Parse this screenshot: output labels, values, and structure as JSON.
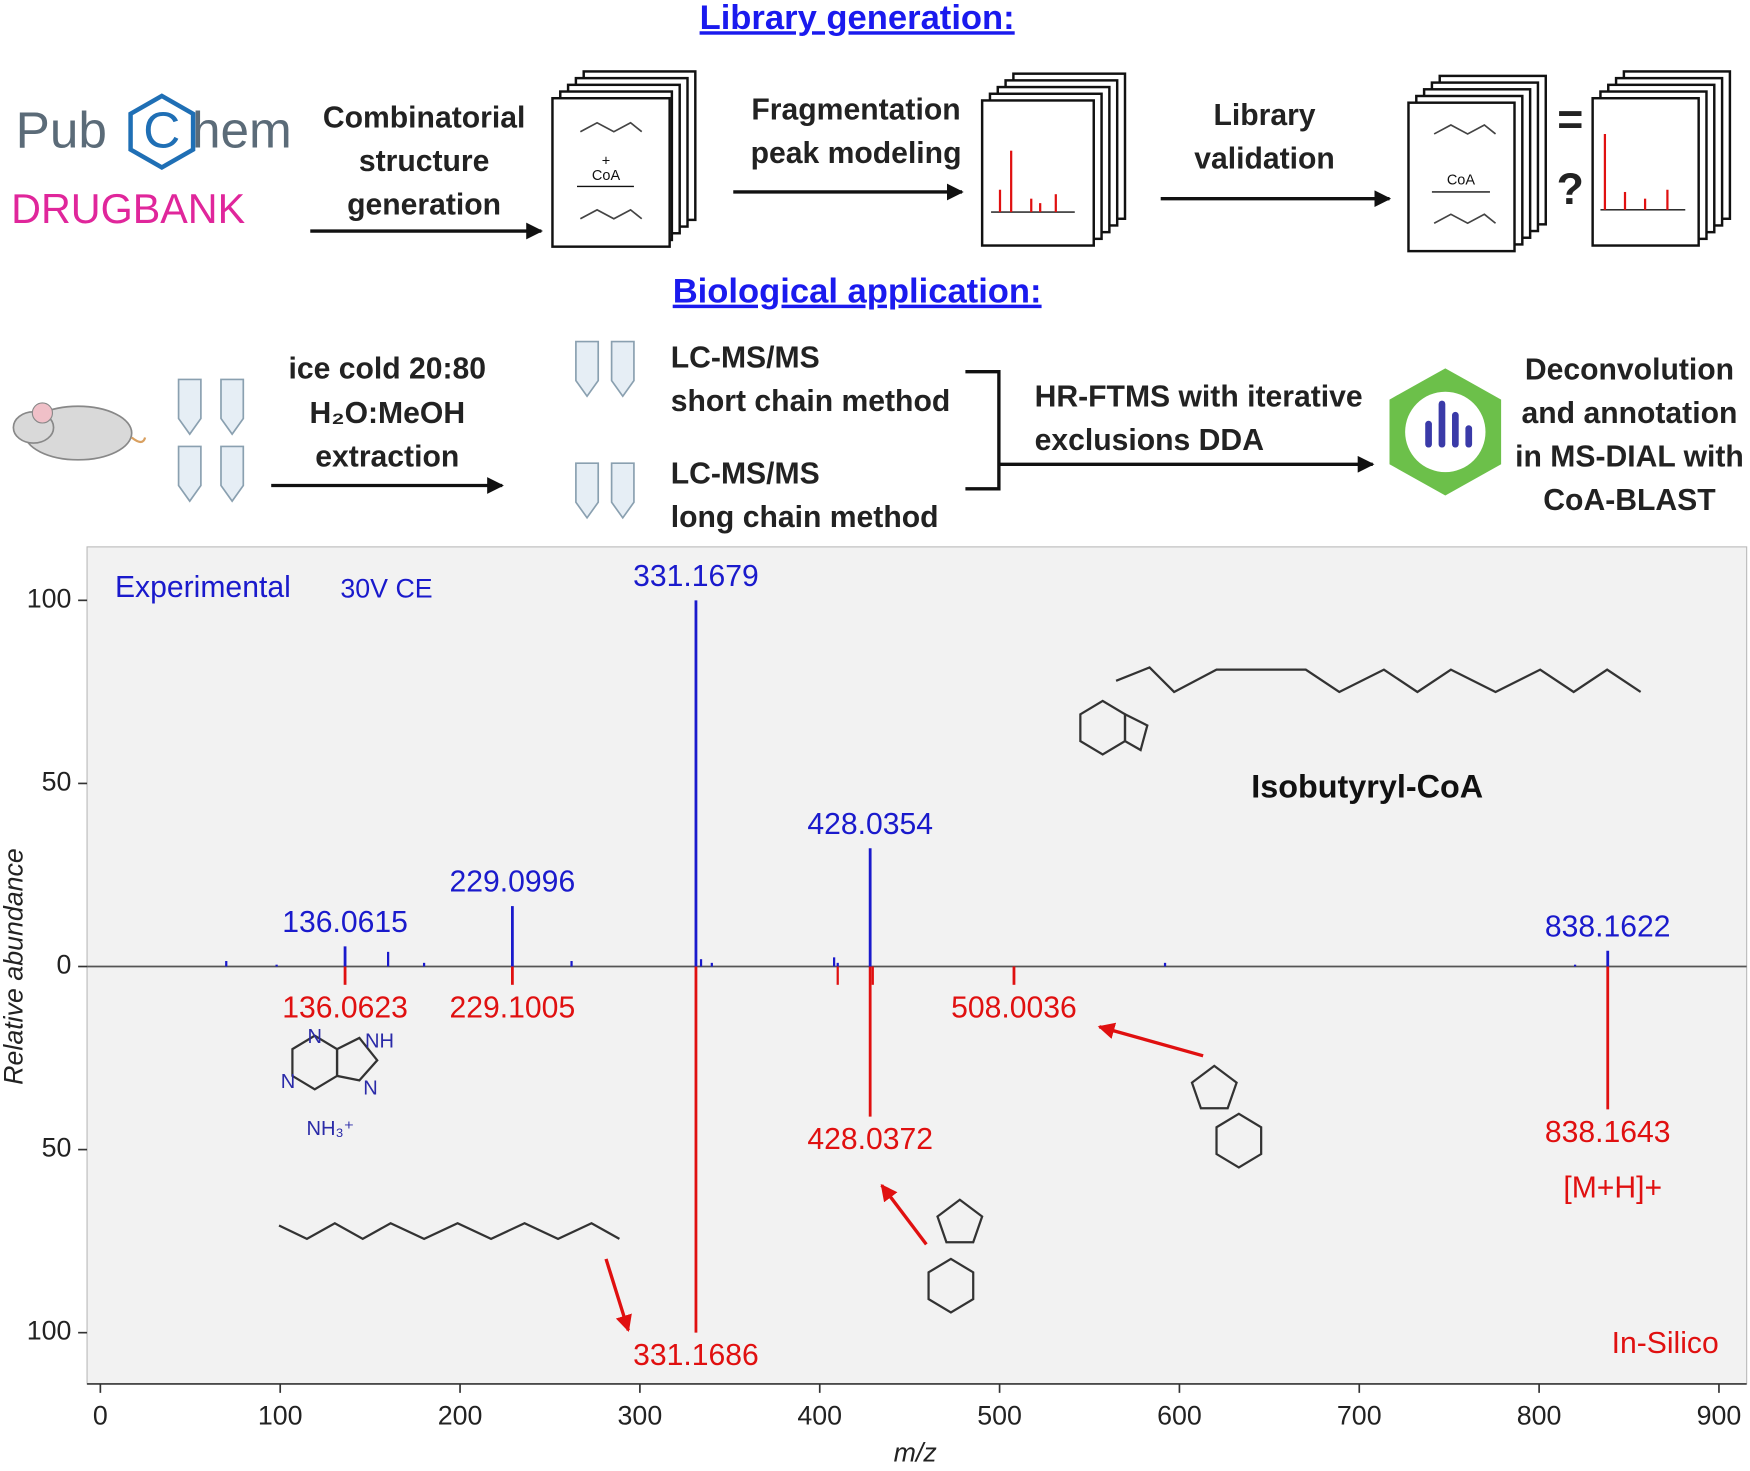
{
  "workflow": {
    "section1_title": "Library generation:",
    "pubchem": [
      "Pub",
      "C",
      "hem"
    ],
    "drugbank": "DRUGBANK",
    "step1": [
      "Combinatorial",
      "structure",
      "generation"
    ],
    "card_texts": [
      "+",
      "CoA"
    ],
    "step2": [
      "Fragmentation",
      "peak modeling"
    ],
    "step3": [
      "Library",
      "validation"
    ],
    "compare": [
      "=",
      "?"
    ],
    "section2_title": "Biological application:",
    "extraction": [
      "ice cold 20:80",
      "H₂O:MeOH",
      "extraction"
    ],
    "method_short": [
      "LC-MS/MS",
      "short chain method"
    ],
    "method_long": [
      "LC-MS/MS",
      "long chain method"
    ],
    "acquisition": [
      "HR-FTMS with iterative",
      "exclusions DDA"
    ],
    "annotation": [
      "Deconvolution",
      "and annotation",
      "in MS-DIAL with",
      "CoA-BLAST"
    ]
  },
  "chart_data": {
    "type": "mirror_spectrum",
    "xlabel": "m/z",
    "ylabel": "Relative abundance",
    "collision_energy": "30V CE",
    "compound": "Isobutyryl-CoA",
    "adduct": "[M+H]+",
    "fragment_atoms": [
      "N",
      "NH",
      "N",
      "N",
      "NH₃⁺"
    ],
    "xlim": [
      -7.4,
      915.4
    ],
    "xticks": [
      0,
      100,
      200,
      300,
      400,
      500,
      600,
      700,
      800,
      900
    ],
    "ylim": [
      -114,
      114.6
    ],
    "yticks": [
      {
        "value": -100,
        "label": "100"
      },
      {
        "value": -50,
        "label": "50"
      },
      0,
      50,
      100
    ],
    "series": [
      {
        "name": "Experimental",
        "color": "#1a1acc",
        "label_peaks": true,
        "x": [
          136.0615,
          229.0996,
          331.1679,
          428.0354,
          838.1622
        ],
        "values": [
          5.5,
          16.5,
          100,
          32.3,
          4.3
        ]
      },
      {
        "color": "#1a1acc",
        "label_peaks": false,
        "x": [
          70,
          98,
          160,
          180,
          262,
          334,
          340,
          408,
          410,
          592,
          820
        ],
        "values": [
          1.5,
          0.5,
          4,
          1,
          1.5,
          2,
          1,
          2.5,
          1,
          1,
          0.5
        ]
      },
      {
        "name": "In-Silico",
        "color": "#e01010",
        "label_peaks": true,
        "x": [
          136.0623,
          229.1005,
          331.1686,
          428.0372,
          508.0036,
          838.1643
        ],
        "values": [
          -5,
          -5,
          -100,
          -41,
          -5,
          -39
        ]
      },
      {
        "color": "#e01010",
        "label_peaks": false,
        "x": [
          410,
          429.5
        ],
        "values": [
          -5,
          -5
        ]
      }
    ]
  }
}
